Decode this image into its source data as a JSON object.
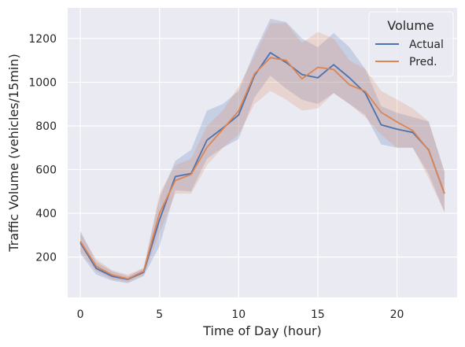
{
  "chart_data": {
    "type": "line",
    "xlabel": "Time of Day (hour)",
    "ylabel": "Traffic Volume (vehicles/15min)",
    "xlim": [
      -0.8,
      23.8
    ],
    "ylim": [
      15,
      1340
    ],
    "xticks": [
      0,
      5,
      10,
      15,
      20
    ],
    "yticks": [
      200,
      400,
      600,
      800,
      1000,
      1200
    ],
    "grid": true,
    "legend": {
      "title": "Volume",
      "placement": "top-right"
    },
    "x": [
      0,
      1,
      2,
      3,
      4,
      5,
      6,
      7,
      8,
      9,
      10,
      11,
      12,
      13,
      14,
      15,
      16,
      17,
      18,
      19,
      20,
      21,
      22,
      23
    ],
    "series": [
      {
        "name": "Actual",
        "color": "#4c72b0",
        "values": [
          265,
          148,
          112,
          98,
          130,
          370,
          568,
          582,
          735,
          790,
          850,
          1030,
          1135,
          1090,
          1035,
          1020,
          1080,
          1020,
          950,
          805,
          785,
          770,
          690,
          490
        ],
        "lower": [
          215,
          120,
          92,
          80,
          112,
          250,
          505,
          500,
          650,
          700,
          740,
          930,
          1030,
          970,
          920,
          900,
          950,
          900,
          850,
          715,
          700,
          700,
          580,
          405
        ],
        "upper": [
          320,
          178,
          135,
          112,
          148,
          470,
          640,
          690,
          870,
          900,
          960,
          1140,
          1290,
          1275,
          1200,
          1160,
          1225,
          1160,
          1060,
          890,
          860,
          840,
          820,
          590
        ]
      },
      {
        "name": "Pred.",
        "color": "#dd8452",
        "values": [
          272,
          158,
          118,
          100,
          135,
          400,
          550,
          578,
          702,
          785,
          868,
          1038,
          1112,
          1100,
          1015,
          1068,
          1058,
          988,
          958,
          862,
          818,
          778,
          688,
          490
        ],
        "lower": [
          225,
          135,
          98,
          85,
          118,
          310,
          490,
          490,
          620,
          700,
          760,
          900,
          960,
          920,
          870,
          880,
          950,
          900,
          840,
          760,
          700,
          700,
          560,
          405
        ],
        "upper": [
          310,
          190,
          140,
          120,
          150,
          490,
          620,
          650,
          800,
          870,
          980,
          1120,
          1270,
          1270,
          1180,
          1230,
          1200,
          1100,
          1060,
          960,
          920,
          880,
          820,
          590
        ]
      }
    ]
  }
}
